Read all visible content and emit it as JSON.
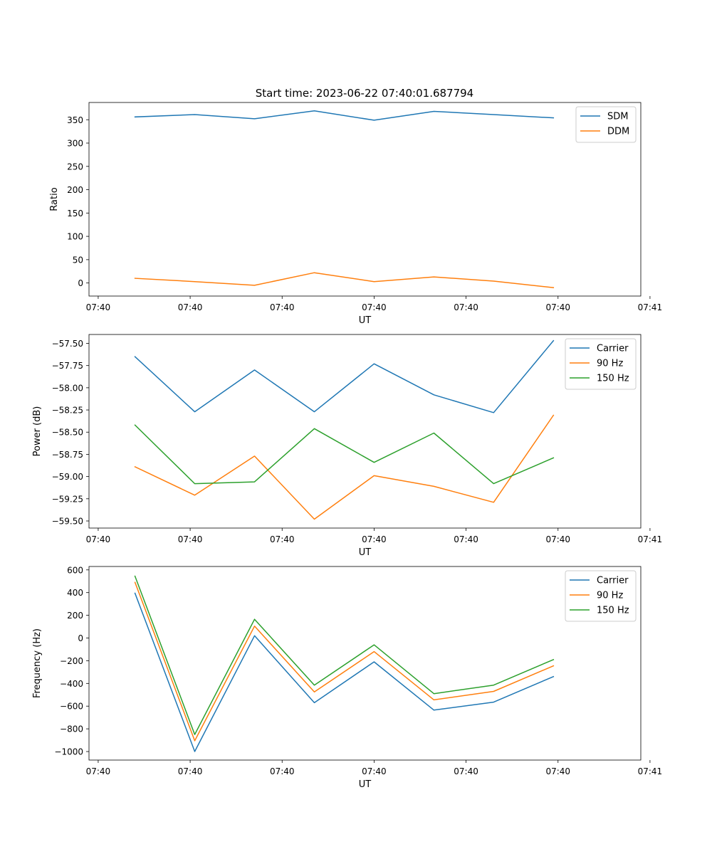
{
  "figure": {
    "title": "Start time: 2023-06-22 07:40:01.687794"
  },
  "colors": {
    "blue": "#1f77b4",
    "orange": "#ff7f0e",
    "green": "#2ca02c",
    "axes": "#000000",
    "legend_border": "#cccccc"
  },
  "chart_data": [
    {
      "type": "line",
      "title": "Start time: 2023-06-22 07:40:01.687794",
      "xlabel": "UT",
      "ylabel": "Ratio",
      "x": [
        0.5,
        1.15,
        1.8,
        2.45,
        3.1,
        3.75,
        4.4,
        5.05
      ],
      "xlim": [
        0,
        6
      ],
      "xtick_values": [
        0.1,
        1.1,
        2.1,
        3.1,
        4.1,
        5.1,
        6.1
      ],
      "xtick_labels": [
        "07:40",
        "07:40",
        "07:40",
        "07:40",
        "07:40",
        "07:40",
        "07:41"
      ],
      "ylim": [
        -28,
        387
      ],
      "yticks": [
        0,
        50,
        100,
        150,
        200,
        250,
        300,
        350
      ],
      "legend": "upper right",
      "grid": false,
      "series": [
        {
          "name": "SDM",
          "color": "#1f77b4",
          "values": [
            356,
            361,
            352,
            369,
            349,
            368,
            361,
            354
          ]
        },
        {
          "name": "DDM",
          "color": "#ff7f0e",
          "values": [
            10,
            3,
            -5,
            22,
            3,
            13,
            4,
            -10
          ]
        }
      ]
    },
    {
      "type": "line",
      "xlabel": "UT",
      "ylabel": "Power (dB)",
      "x": [
        0.5,
        1.15,
        1.8,
        2.45,
        3.1,
        3.75,
        4.4,
        5.05
      ],
      "xlim": [
        0,
        6
      ],
      "xtick_values": [
        0.1,
        1.1,
        2.1,
        3.1,
        4.1,
        5.1,
        6.1
      ],
      "xtick_labels": [
        "07:40",
        "07:40",
        "07:40",
        "07:40",
        "07:40",
        "07:40",
        "07:41"
      ],
      "ylim": [
        -59.58,
        -57.4
      ],
      "yticks": [
        -59.5,
        -59.25,
        -59.0,
        -58.75,
        -58.5,
        -58.25,
        -58.0,
        -57.75,
        -57.5
      ],
      "ytick_labels": [
        "−59.50",
        "−59.25",
        "−59.00",
        "−58.75",
        "−58.50",
        "−58.25",
        "−58.00",
        "−57.75",
        "−57.50"
      ],
      "legend": "upper right",
      "grid": false,
      "series": [
        {
          "name": "Carrier",
          "color": "#1f77b4",
          "values": [
            -57.65,
            -58.27,
            -57.8,
            -58.27,
            -57.73,
            -58.08,
            -58.28,
            -57.47
          ]
        },
        {
          "name": "90 Hz",
          "color": "#ff7f0e",
          "values": [
            -58.89,
            -59.21,
            -58.77,
            -59.48,
            -58.99,
            -59.11,
            -59.29,
            -58.31
          ]
        },
        {
          "name": "150 Hz",
          "color": "#2ca02c",
          "values": [
            -58.42,
            -59.08,
            -59.06,
            -58.46,
            -58.84,
            -58.51,
            -59.08,
            -58.79
          ]
        }
      ]
    },
    {
      "type": "line",
      "xlabel": "UT",
      "ylabel": "Frequency (Hz)",
      "x": [
        0.5,
        1.15,
        1.8,
        2.45,
        3.1,
        3.75,
        4.4,
        5.05
      ],
      "xlim": [
        0,
        6
      ],
      "xtick_values": [
        0.1,
        1.1,
        2.1,
        3.1,
        4.1,
        5.1,
        6.1
      ],
      "xtick_labels": [
        "07:40",
        "07:40",
        "07:40",
        "07:40",
        "07:40",
        "07:40",
        "07:41"
      ],
      "ylim": [
        -1075,
        630
      ],
      "yticks": [
        -1000,
        -800,
        -600,
        -400,
        -200,
        0,
        200,
        400,
        600
      ],
      "ytick_labels": [
        "−1000",
        "−800",
        "−600",
        "−400",
        "−200",
        "0",
        "200",
        "400",
        "600"
      ],
      "legend": "upper right",
      "grid": false,
      "series": [
        {
          "name": "Carrier",
          "color": "#1f77b4",
          "values": [
            395,
            -1000,
            20,
            -570,
            -210,
            -635,
            -565,
            -340
          ]
        },
        {
          "name": "90 Hz",
          "color": "#ff7f0e",
          "values": [
            490,
            -905,
            105,
            -475,
            -120,
            -545,
            -470,
            -245
          ]
        },
        {
          "name": "150 Hz",
          "color": "#2ca02c",
          "values": [
            545,
            -850,
            165,
            -415,
            -60,
            -490,
            -415,
            -190
          ]
        }
      ]
    }
  ]
}
